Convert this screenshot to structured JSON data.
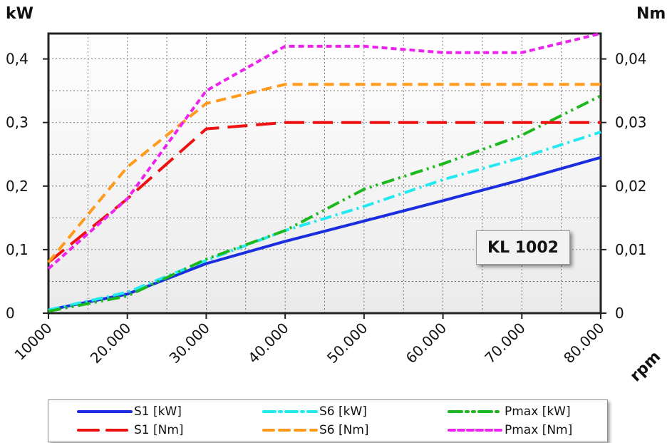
{
  "chart_data": {
    "type": "line",
    "left_axis_unit": "kW",
    "right_axis_unit": "Nm",
    "x_unit": "rpm",
    "badge": "KL 1002",
    "x": [
      10000,
      20000,
      30000,
      40000,
      50000,
      60000,
      70000,
      80000
    ],
    "x_tick_labels": [
      "10000",
      "20.000",
      "30.000",
      "40.000",
      "50.000",
      "60.000",
      "70.000",
      "80.000"
    ],
    "left_ticks": [
      0,
      0.1,
      0.2,
      0.3,
      0.4
    ],
    "left_tick_labels": [
      "0",
      "0,1",
      "0,2",
      "0,3",
      "0,4"
    ],
    "right_ticks": [
      0,
      0.01,
      0.02,
      0.03,
      0.04
    ],
    "right_tick_labels": [
      "0",
      "0,01",
      "0,02",
      "0,03",
      "0,04"
    ],
    "ylim_left": [
      0,
      0.44
    ],
    "ylim_right": [
      0,
      0.044
    ],
    "grid": true,
    "series": [
      {
        "name": "S1 [kW]",
        "axis": "left",
        "color": "#1a2ee0",
        "dash": "solid",
        "values": [
          0.005,
          0.03,
          0.078,
          0.113,
          0.145,
          0.177,
          0.21,
          0.245
        ]
      },
      {
        "name": "S6 [kW]",
        "axis": "left",
        "color": "#22e8f0",
        "dash": "dashdot",
        "values": [
          0.005,
          0.033,
          0.083,
          0.13,
          0.168,
          0.21,
          0.245,
          0.285
        ]
      },
      {
        "name": "Pmax [kW]",
        "axis": "left",
        "color": "#1db81d",
        "dash": "dashdotdot",
        "values": [
          0.003,
          0.027,
          0.085,
          0.13,
          0.195,
          0.235,
          0.28,
          0.342
        ]
      },
      {
        "name": "S1 [Nm]",
        "axis": "right",
        "color": "#ee1111",
        "dash": "longdash",
        "values": [
          0.008,
          0.018,
          0.029,
          0.03,
          0.03,
          0.03,
          0.03,
          0.03
        ]
      },
      {
        "name": "S6 [Nm]",
        "axis": "right",
        "color": "#ff9a1a",
        "dash": "dash",
        "values": [
          0.008,
          0.023,
          0.033,
          0.036,
          0.036,
          0.036,
          0.036,
          0.036
        ]
      },
      {
        "name": "Pmax [Nm]",
        "axis": "right",
        "color": "#ee22ee",
        "dash": "shortdash",
        "values": [
          0.007,
          0.018,
          0.035,
          0.042,
          0.042,
          0.041,
          0.041,
          0.044
        ]
      }
    ],
    "legend_position": "bottom"
  }
}
